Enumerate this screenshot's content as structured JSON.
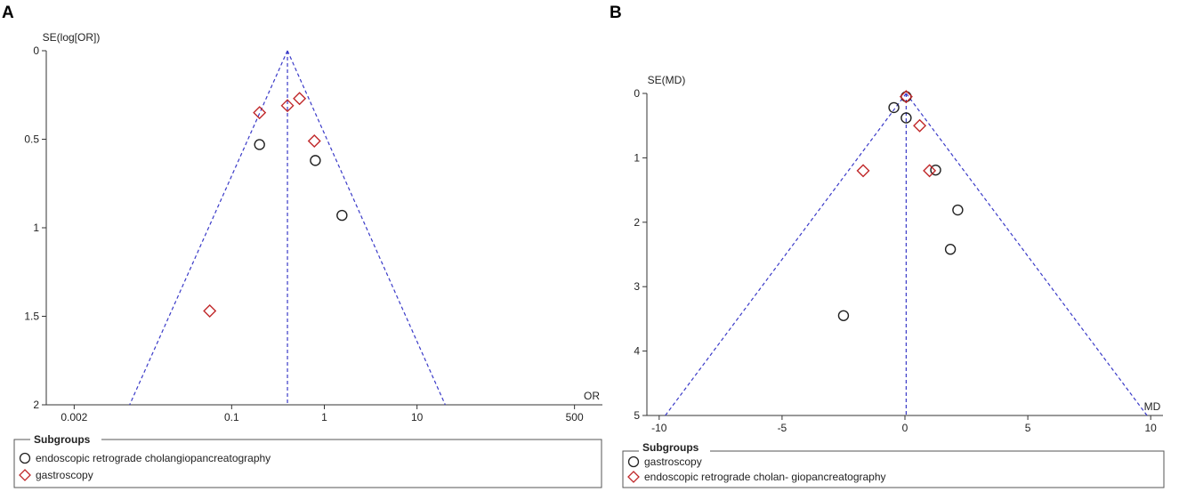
{
  "panels": [
    {
      "letter": "A",
      "legend": {
        "title": "Subgroups",
        "items": [
          {
            "label": "endoscopic retrograde cholangiopancreatography",
            "marker": "circle",
            "color": "#222222"
          },
          {
            "label": "gastroscopy",
            "marker": "diamond",
            "color": "#c0282a"
          }
        ]
      }
    },
    {
      "letter": "B",
      "legend": {
        "title": "Subgroups",
        "items": [
          {
            "label": "gastroscopy",
            "marker": "circle",
            "color": "#222222"
          },
          {
            "label": "endoscopic retrograde cholan- giopancreatography",
            "marker": "diamond",
            "color": "#c0282a"
          }
        ]
      }
    }
  ],
  "chart_data": [
    {
      "type": "scatter",
      "title": "",
      "xlabel": "OR",
      "ylabel": "SE(log[OR])",
      "x_scale": "log",
      "xlim": [
        0.001,
        1000
      ],
      "x_ticks": [
        0.002,
        0.1,
        1,
        10,
        500
      ],
      "x_tick_labels": [
        "0.002",
        "0.1",
        "1",
        "10",
        "500"
      ],
      "ylim": [
        0,
        2
      ],
      "y_inverted": true,
      "y_ticks": [
        0,
        0.5,
        1,
        1.5,
        2
      ],
      "y_tick_labels": [
        "0",
        "0.5",
        "1",
        "1.5",
        "2"
      ],
      "pooled_estimate": 0.4,
      "funnel_lines": true,
      "grid": false,
      "legend_position": "bottom",
      "series": [
        {
          "name": "endoscopic retrograde cholangiopancreatography",
          "marker": "circle",
          "color": "#222222",
          "points": [
            {
              "x": 0.2,
              "y": 0.53
            },
            {
              "x": 0.8,
              "y": 0.62
            },
            {
              "x": 1.55,
              "y": 0.93
            }
          ]
        },
        {
          "name": "gastroscopy",
          "marker": "diamond",
          "color": "#c0282a",
          "points": [
            {
              "x": 0.2,
              "y": 0.35
            },
            {
              "x": 0.4,
              "y": 0.31
            },
            {
              "x": 0.54,
              "y": 0.27
            },
            {
              "x": 0.78,
              "y": 0.51
            },
            {
              "x": 0.058,
              "y": 1.47
            }
          ]
        }
      ]
    },
    {
      "type": "scatter",
      "title": "",
      "xlabel": "MD",
      "ylabel": "SE(MD)",
      "x_scale": "linear",
      "xlim": [
        -10.5,
        10.5
      ],
      "x_ticks": [
        -10,
        -5,
        0,
        5,
        10
      ],
      "x_tick_labels": [
        "-10",
        "-5",
        "0",
        "5",
        "10"
      ],
      "ylim": [
        0,
        5
      ],
      "y_inverted": true,
      "y_ticks": [
        0,
        1,
        2,
        3,
        4,
        5
      ],
      "y_tick_labels": [
        "0",
        "1",
        "2",
        "3",
        "4",
        "5"
      ],
      "pooled_estimate": 0.05,
      "funnel_lines": true,
      "grid": false,
      "legend_position": "bottom",
      "series": [
        {
          "name": "gastroscopy",
          "marker": "circle",
          "color": "#222222",
          "points": [
            {
              "x": 0.05,
              "y": 0.05
            },
            {
              "x": -0.45,
              "y": 0.22
            },
            {
              "x": 0.05,
              "y": 0.38
            },
            {
              "x": 1.25,
              "y": 1.19
            },
            {
              "x": 2.15,
              "y": 1.81
            },
            {
              "x": 1.85,
              "y": 2.42
            },
            {
              "x": -2.5,
              "y": 3.45
            }
          ]
        },
        {
          "name": "endoscopic retrograde cholan- giopancreatography",
          "marker": "diamond",
          "color": "#c0282a",
          "points": [
            {
              "x": 0.05,
              "y": 0.05
            },
            {
              "x": 0.6,
              "y": 0.5
            },
            {
              "x": 1.0,
              "y": 1.2
            },
            {
              "x": -1.7,
              "y": 1.2
            }
          ]
        }
      ]
    }
  ]
}
